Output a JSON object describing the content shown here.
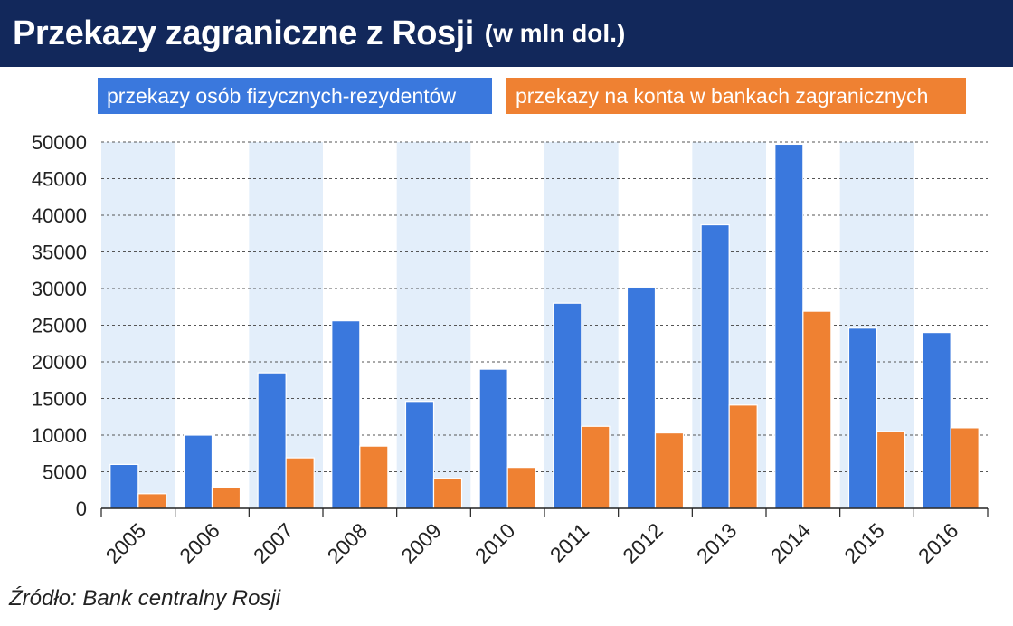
{
  "header": {
    "title": "Przekazy zagraniczne z Rosji",
    "subtitle": "(w mln dol.)"
  },
  "legend": {
    "series_1": "przekazy osób fizycznych-rezydentów",
    "series_2": "przekazy na konta w bankach zagranicznych"
  },
  "source": "Źródło: Bank centralny Rosji",
  "colors": {
    "title_bg": "#12285b",
    "series_1": "#3a78dd",
    "series_2": "#ef8132",
    "band_light": "#e3eefa"
  },
  "chart_data": {
    "type": "bar",
    "categories": [
      "2005",
      "2006",
      "2007",
      "2008",
      "2009",
      "2010",
      "2011",
      "2012",
      "2013",
      "2014",
      "2015",
      "2016"
    ],
    "series": [
      {
        "name": "przekazy osób fizycznych-rezydentów",
        "values": [
          6000,
          10000,
          18500,
          25600,
          14600,
          19000,
          28000,
          30200,
          38700,
          49700,
          24600,
          24000
        ]
      },
      {
        "name": "przekazy na konta w bankach zagranicznych",
        "values": [
          2000,
          2900,
          6900,
          8500,
          4100,
          5600,
          11200,
          10300,
          14100,
          26900,
          10500,
          11000
        ]
      }
    ],
    "yticks": [
      "0",
      "5000",
      "10000",
      "15000",
      "20000",
      "25000",
      "30000",
      "35000",
      "40000",
      "45000",
      "50000"
    ],
    "ylim": [
      0,
      50000
    ],
    "xlabel": "",
    "ylabel": "",
    "grid": "horizontal dashed",
    "legend_position": "top"
  }
}
